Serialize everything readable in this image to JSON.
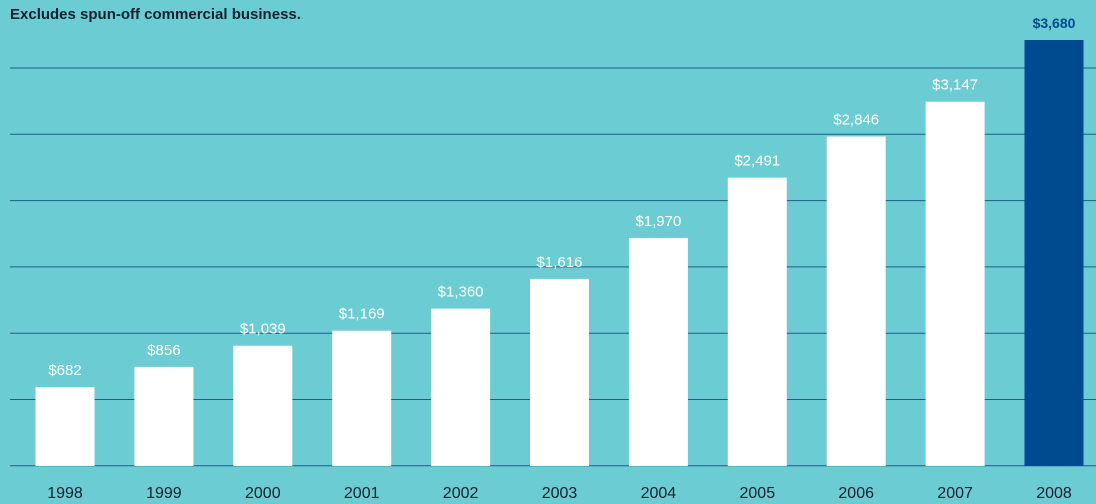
{
  "subtitle": "Excludes spun-off commercial business.",
  "colors": {
    "background": "#6cccd4",
    "gridline": "#1f5d86",
    "bar": "#ffffff",
    "highlight_bar": "#004a8f",
    "bar_label": "#ffffff",
    "highlight_label": "#004a8f",
    "axis_label": "#11222e"
  },
  "chart_data": {
    "type": "bar",
    "title": "",
    "xlabel": "",
    "ylabel": "",
    "categories": [
      "1998",
      "1999",
      "2000",
      "2001",
      "2002",
      "2003",
      "2004",
      "2005",
      "2006",
      "2007",
      "2008"
    ],
    "values": [
      682,
      856,
      1039,
      1169,
      1360,
      1616,
      1970,
      2491,
      2846,
      3147,
      3680
    ],
    "value_labels": [
      "$682",
      "$856",
      "$1,039",
      "$1,169",
      "$1,360",
      "$1,616",
      "$1,970",
      "$2,491",
      "$2,846",
      "$3,147",
      "$3,680"
    ],
    "highlight_index": 10,
    "ylim": [
      0,
      3680
    ],
    "grid": true,
    "gridline_count": 7
  }
}
